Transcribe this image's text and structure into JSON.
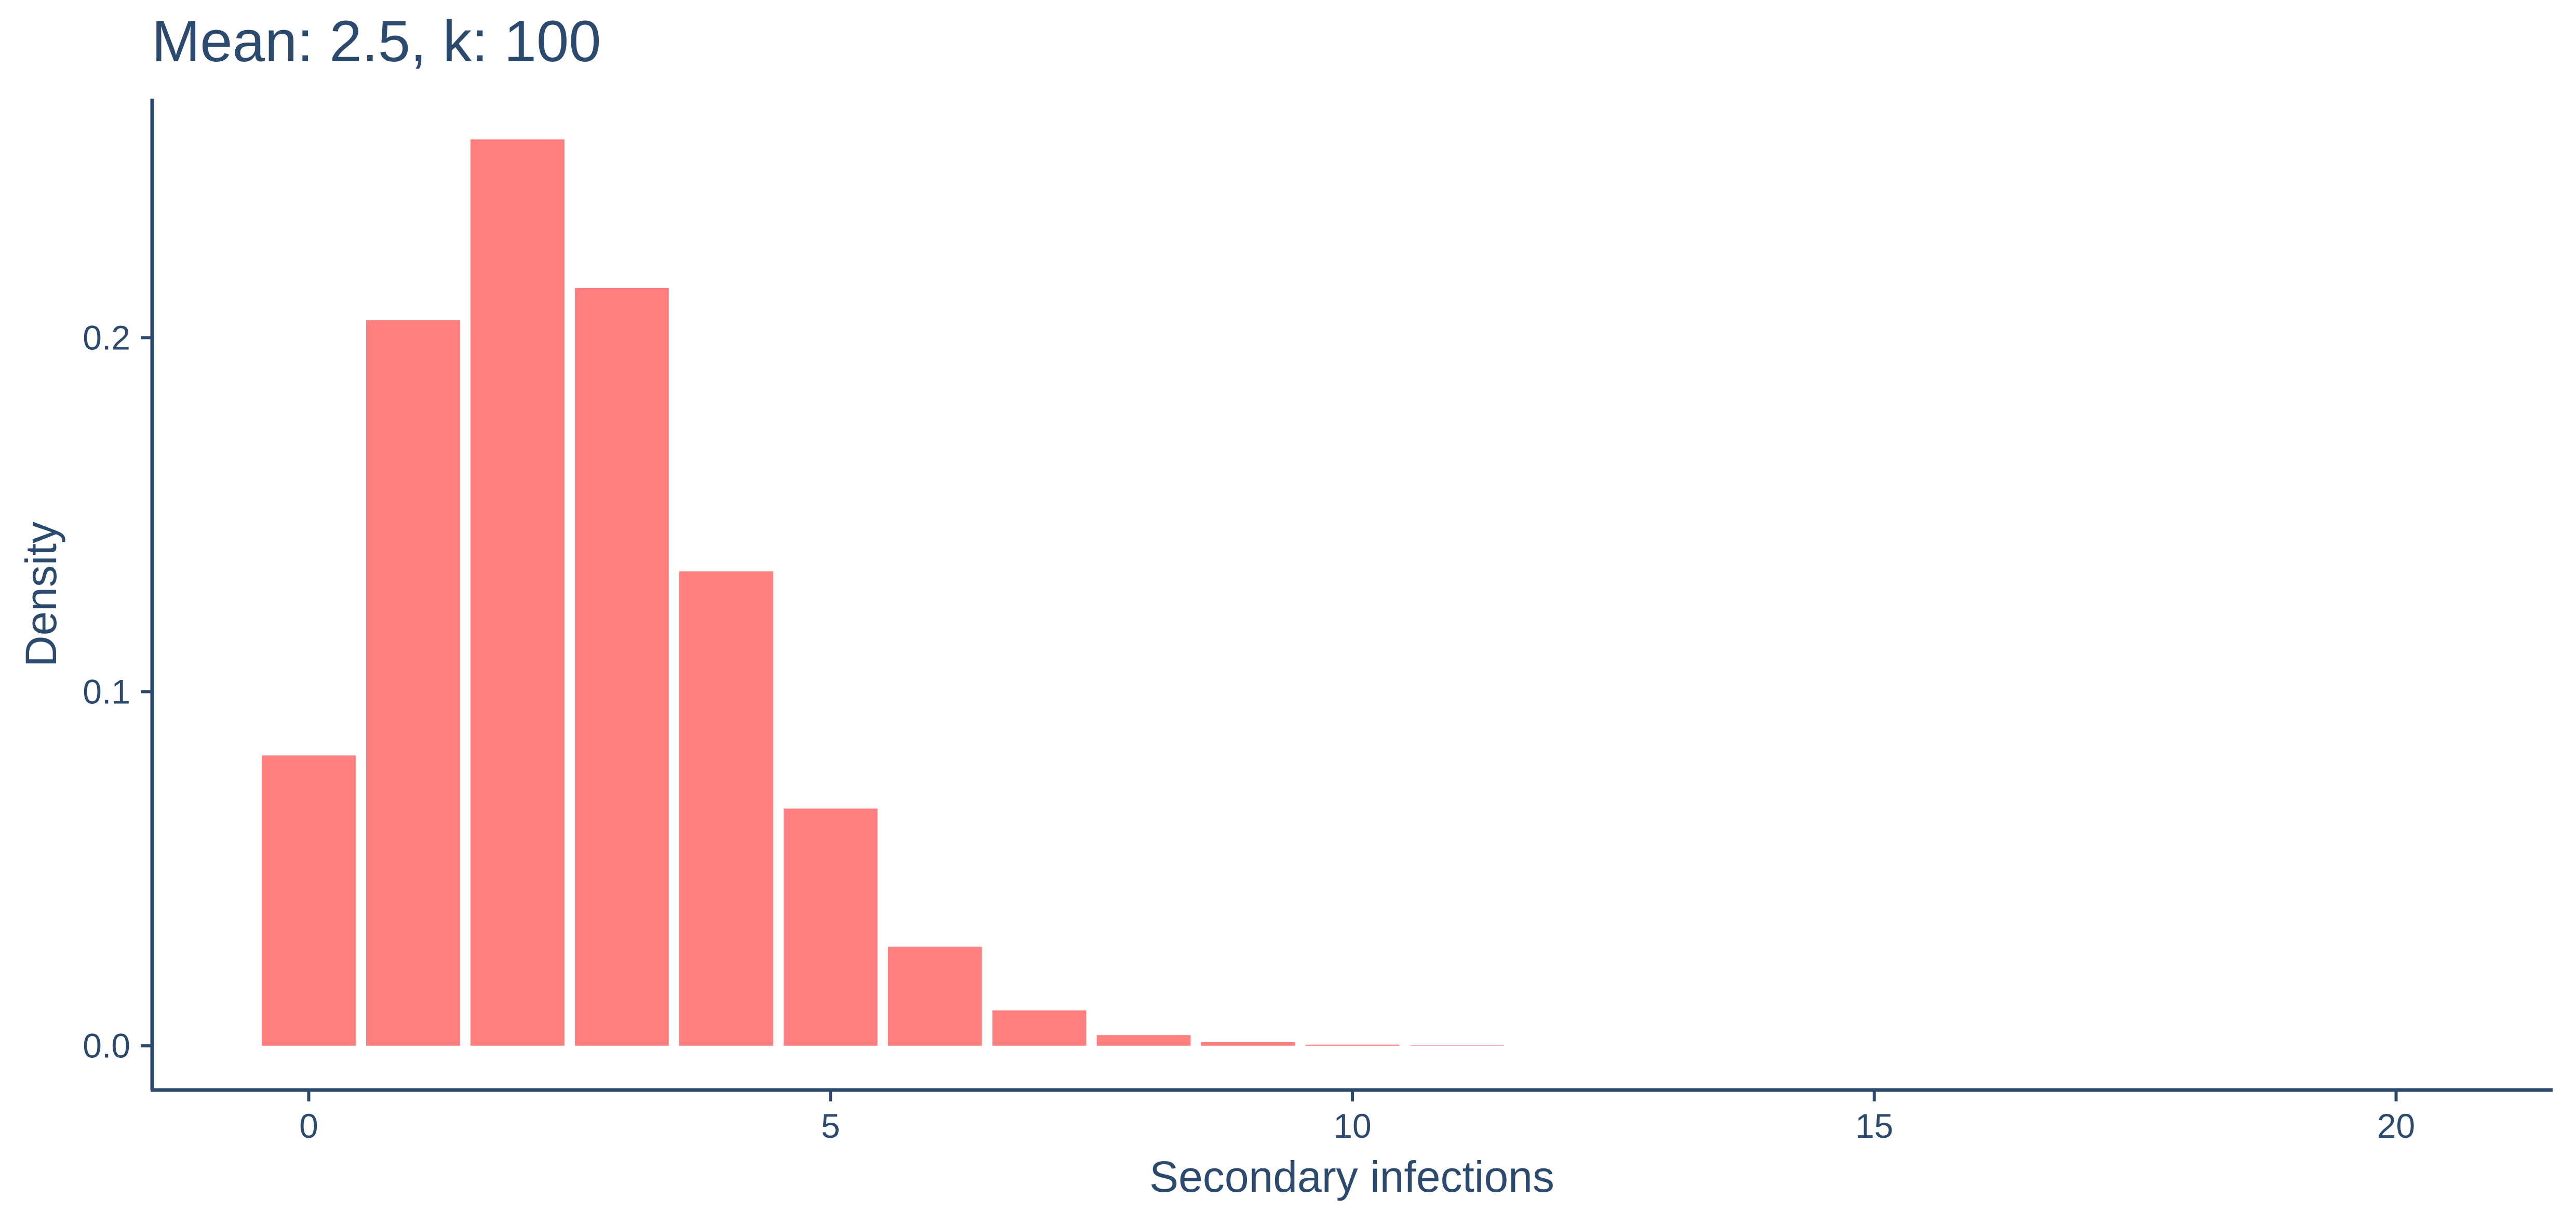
{
  "chart_data": {
    "type": "bar",
    "title": "Mean: 2.5, k: 100",
    "xlabel": "Secondary infections",
    "ylabel": "Density",
    "x": [
      0,
      1,
      2,
      3,
      4,
      5,
      6,
      7,
      8,
      9,
      10,
      11
    ],
    "values": [
      0.082,
      0.205,
      0.256,
      0.214,
      0.134,
      0.067,
      0.028,
      0.01,
      0.003,
      0.001,
      0.0003,
      0.0001
    ],
    "xlim": [
      -1.5,
      21.5
    ],
    "ylim": [
      -0.0125,
      0.2675
    ],
    "x_ticks": [
      0,
      5,
      10,
      15,
      20
    ],
    "x_tick_labels": [
      "0",
      "5",
      "10",
      "15",
      "20"
    ],
    "y_ticks": [
      0.0,
      0.1,
      0.2
    ],
    "y_tick_labels": [
      "0.0",
      "0.1",
      "0.2"
    ],
    "bar_color": "#ff7f7f",
    "axis_color": "#2b4a6e",
    "grid": false,
    "legend": "none"
  }
}
